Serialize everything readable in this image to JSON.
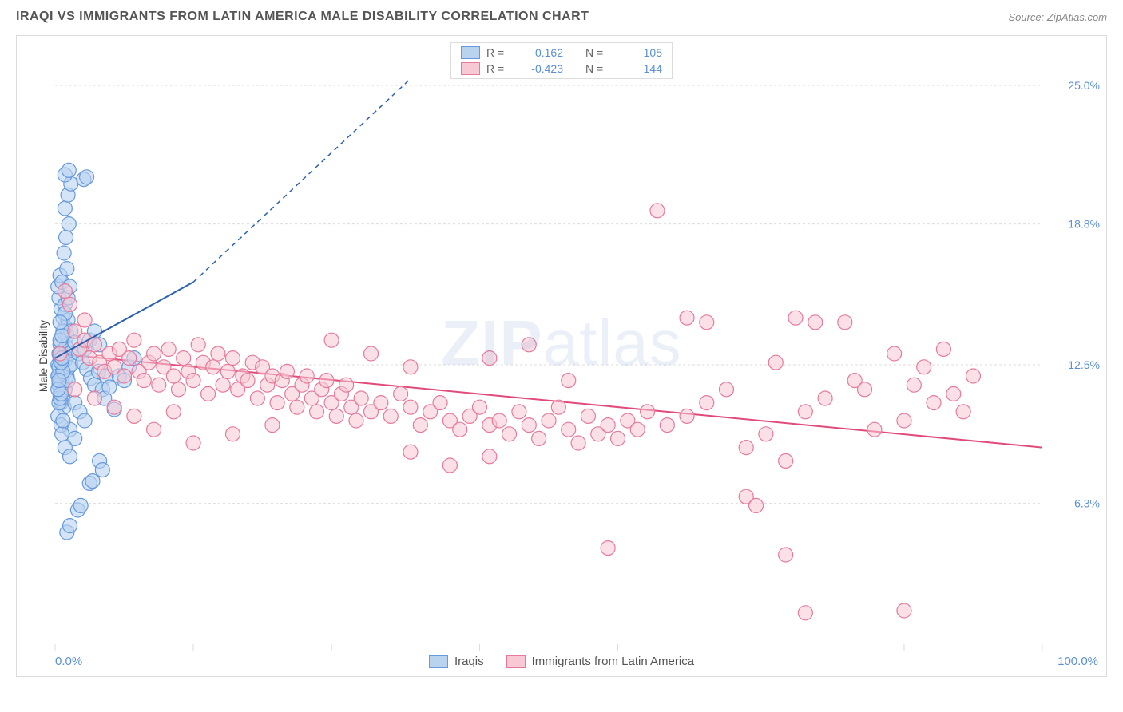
{
  "header": {
    "title": "IRAQI VS IMMIGRANTS FROM LATIN AMERICA MALE DISABILITY CORRELATION CHART",
    "source": "Source: ZipAtlas.com"
  },
  "ylabel": "Male Disability",
  "watermark": {
    "bold": "ZIP",
    "light": "atlas"
  },
  "chart": {
    "type": "scatter",
    "xlim": [
      0,
      100
    ],
    "ylim": [
      0,
      27
    ],
    "x_ticks": [
      0,
      14,
      28,
      43,
      57,
      71,
      86,
      100
    ],
    "y_gridlines": [
      6.3,
      12.5,
      18.8,
      25.0
    ],
    "y_grid_labels": [
      "6.3%",
      "12.5%",
      "18.8%",
      "25.0%"
    ],
    "x_axis_min_label": "0.0%",
    "x_axis_max_label": "100.0%",
    "plot_left_pad": 48,
    "plot_right_pad": 80,
    "background_color": "#ffffff",
    "grid_color": "#dcdcdc",
    "marker_radius": 9,
    "marker_stroke_width": 1.2,
    "series": [
      {
        "key": "iraqis",
        "label": "Iraqis",
        "fill": "#b9d2f0",
        "stroke": "#6699dd",
        "fill_opacity": 0.6,
        "r_value": "0.162",
        "n_value": "105",
        "trend": {
          "x1": 0,
          "y1": 12.8,
          "x2": 14,
          "y2": 16.2,
          "dash_x2": 36,
          "dash_y2": 25.3,
          "color": "#2b5fb0",
          "width": 2
        },
        "points": [
          [
            0.3,
            12.5
          ],
          [
            0.4,
            11.8
          ],
          [
            0.5,
            12.2
          ],
          [
            0.6,
            13.1
          ],
          [
            0.5,
            12.8
          ],
          [
            0.4,
            12.0
          ],
          [
            0.6,
            11.5
          ],
          [
            0.7,
            12.6
          ],
          [
            0.8,
            13.0
          ],
          [
            0.5,
            13.4
          ],
          [
            0.4,
            12.4
          ],
          [
            0.6,
            12.9
          ],
          [
            0.7,
            11.9
          ],
          [
            0.5,
            11.2
          ],
          [
            0.4,
            11.6
          ],
          [
            0.6,
            10.8
          ],
          [
            0.8,
            11.0
          ],
          [
            0.9,
            12.1
          ],
          [
            1.0,
            12.7
          ],
          [
            1.1,
            13.3
          ],
          [
            1.2,
            12.0
          ],
          [
            1.0,
            11.4
          ],
          [
            0.9,
            10.6
          ],
          [
            1.3,
            11.8
          ],
          [
            1.4,
            12.4
          ],
          [
            1.5,
            13.0
          ],
          [
            1.6,
            12.5
          ],
          [
            1.2,
            13.8
          ],
          [
            1.0,
            14.2
          ],
          [
            0.8,
            14.6
          ],
          [
            0.6,
            15.0
          ],
          [
            0.4,
            15.5
          ],
          [
            0.3,
            16.0
          ],
          [
            0.5,
            16.5
          ],
          [
            0.7,
            16.2
          ],
          [
            1.0,
            15.2
          ],
          [
            1.3,
            14.5
          ],
          [
            1.6,
            14.0
          ],
          [
            2.0,
            13.5
          ],
          [
            2.4,
            13.0
          ],
          [
            2.8,
            12.6
          ],
          [
            3.2,
            12.3
          ],
          [
            3.6,
            11.9
          ],
          [
            4.0,
            11.6
          ],
          [
            4.4,
            12.2
          ],
          [
            4.8,
            11.4
          ],
          [
            5.2,
            12.0
          ],
          [
            2.0,
            10.8
          ],
          [
            2.5,
            10.4
          ],
          [
            3.0,
            10.0
          ],
          [
            1.5,
            9.6
          ],
          [
            2.0,
            9.2
          ],
          [
            1.0,
            8.8
          ],
          [
            1.5,
            8.4
          ],
          [
            0.8,
            14.0
          ],
          [
            1.0,
            14.8
          ],
          [
            1.3,
            15.5
          ],
          [
            1.5,
            16.0
          ],
          [
            1.2,
            16.8
          ],
          [
            0.9,
            17.5
          ],
          [
            1.1,
            18.2
          ],
          [
            1.4,
            18.8
          ],
          [
            1.0,
            19.5
          ],
          [
            1.3,
            20.1
          ],
          [
            1.6,
            20.6
          ],
          [
            1.0,
            21.0
          ],
          [
            1.4,
            21.2
          ],
          [
            2.9,
            20.8
          ],
          [
            3.2,
            20.9
          ],
          [
            1.2,
            5.0
          ],
          [
            1.5,
            5.3
          ],
          [
            2.3,
            6.0
          ],
          [
            2.6,
            6.2
          ],
          [
            3.5,
            7.2
          ],
          [
            3.8,
            7.3
          ],
          [
            4.5,
            8.2
          ],
          [
            4.8,
            7.8
          ],
          [
            5.0,
            11.0
          ],
          [
            5.5,
            11.5
          ],
          [
            6.0,
            10.5
          ],
          [
            6.5,
            12.0
          ],
          [
            7.0,
            11.8
          ],
          [
            7.5,
            12.4
          ],
          [
            8.0,
            12.8
          ],
          [
            3.0,
            13.2
          ],
          [
            3.5,
            13.6
          ],
          [
            4.0,
            14.0
          ],
          [
            4.5,
            13.4
          ],
          [
            0.3,
            10.2
          ],
          [
            0.4,
            10.8
          ],
          [
            0.5,
            11.0
          ],
          [
            0.6,
            9.8
          ],
          [
            0.7,
            9.4
          ],
          [
            0.8,
            10.0
          ],
          [
            0.3,
            12.0
          ],
          [
            0.4,
            13.0
          ],
          [
            0.5,
            13.6
          ],
          [
            0.6,
            11.2
          ],
          [
            0.7,
            13.8
          ],
          [
            0.8,
            12.2
          ],
          [
            0.3,
            11.4
          ],
          [
            0.4,
            11.8
          ],
          [
            0.5,
            14.4
          ],
          [
            0.6,
            12.6
          ],
          [
            0.7,
            12.8
          ]
        ]
      },
      {
        "key": "latin",
        "label": "Immigrants from Latin America",
        "fill": "#f8c8d4",
        "stroke": "#e77a9a",
        "fill_opacity": 0.55,
        "r_value": "-0.423",
        "n_value": "144",
        "trend": {
          "x1": 0,
          "y1": 13.0,
          "x2": 100,
          "y2": 8.8,
          "color": "#e14b7a",
          "width": 2
        },
        "points": [
          [
            0.5,
            13.0
          ],
          [
            1.0,
            15.8
          ],
          [
            1.5,
            15.2
          ],
          [
            2.0,
            14.0
          ],
          [
            2.5,
            13.2
          ],
          [
            3.0,
            13.6
          ],
          [
            3.5,
            12.8
          ],
          [
            4.0,
            13.4
          ],
          [
            4.5,
            12.6
          ],
          [
            5.0,
            12.2
          ],
          [
            5.5,
            13.0
          ],
          [
            6.0,
            12.4
          ],
          [
            6.5,
            13.2
          ],
          [
            7.0,
            12.0
          ],
          [
            7.5,
            12.8
          ],
          [
            8.0,
            13.6
          ],
          [
            8.5,
            12.2
          ],
          [
            9.0,
            11.8
          ],
          [
            9.5,
            12.6
          ],
          [
            10.0,
            13.0
          ],
          [
            10.5,
            11.6
          ],
          [
            11.0,
            12.4
          ],
          [
            11.5,
            13.2
          ],
          [
            12.0,
            12.0
          ],
          [
            12.5,
            11.4
          ],
          [
            13.0,
            12.8
          ],
          [
            13.5,
            12.2
          ],
          [
            14.0,
            11.8
          ],
          [
            14.5,
            13.4
          ],
          [
            15.0,
            12.6
          ],
          [
            15.5,
            11.2
          ],
          [
            16.0,
            12.4
          ],
          [
            16.5,
            13.0
          ],
          [
            17.0,
            11.6
          ],
          [
            17.5,
            12.2
          ],
          [
            18.0,
            12.8
          ],
          [
            18.5,
            11.4
          ],
          [
            19.0,
            12.0
          ],
          [
            19.5,
            11.8
          ],
          [
            20.0,
            12.6
          ],
          [
            20.5,
            11.0
          ],
          [
            21.0,
            12.4
          ],
          [
            21.5,
            11.6
          ],
          [
            22.0,
            12.0
          ],
          [
            22.5,
            10.8
          ],
          [
            23.0,
            11.8
          ],
          [
            23.5,
            12.2
          ],
          [
            24.0,
            11.2
          ],
          [
            24.5,
            10.6
          ],
          [
            25.0,
            11.6
          ],
          [
            25.5,
            12.0
          ],
          [
            26.0,
            11.0
          ],
          [
            26.5,
            10.4
          ],
          [
            27.0,
            11.4
          ],
          [
            27.5,
            11.8
          ],
          [
            28.0,
            10.8
          ],
          [
            28.5,
            10.2
          ],
          [
            29.0,
            11.2
          ],
          [
            29.5,
            11.6
          ],
          [
            30.0,
            10.6
          ],
          [
            30.5,
            10.0
          ],
          [
            31.0,
            11.0
          ],
          [
            32.0,
            10.4
          ],
          [
            33.0,
            10.8
          ],
          [
            34.0,
            10.2
          ],
          [
            35.0,
            11.2
          ],
          [
            36.0,
            10.6
          ],
          [
            37.0,
            9.8
          ],
          [
            38.0,
            10.4
          ],
          [
            39.0,
            10.8
          ],
          [
            40.0,
            10.0
          ],
          [
            41.0,
            9.6
          ],
          [
            42.0,
            10.2
          ],
          [
            43.0,
            10.6
          ],
          [
            44.0,
            9.8
          ],
          [
            45.0,
            10.0
          ],
          [
            46.0,
            9.4
          ],
          [
            47.0,
            10.4
          ],
          [
            48.0,
            9.8
          ],
          [
            49.0,
            9.2
          ],
          [
            50.0,
            10.0
          ],
          [
            51.0,
            10.6
          ],
          [
            52.0,
            9.6
          ],
          [
            53.0,
            9.0
          ],
          [
            54.0,
            10.2
          ],
          [
            55.0,
            9.4
          ],
          [
            56.0,
            9.8
          ],
          [
            57.0,
            9.2
          ],
          [
            58.0,
            10.0
          ],
          [
            59.0,
            9.6
          ],
          [
            56.0,
            4.3
          ],
          [
            60.0,
            10.4
          ],
          [
            62.0,
            9.8
          ],
          [
            64.0,
            10.2
          ],
          [
            66.0,
            10.8
          ],
          [
            68.0,
            11.4
          ],
          [
            70.0,
            8.8
          ],
          [
            72.0,
            9.4
          ],
          [
            74.0,
            8.2
          ],
          [
            61.0,
            19.4
          ],
          [
            64.0,
            14.6
          ],
          [
            66.0,
            14.4
          ],
          [
            70.0,
            6.6
          ],
          [
            71.0,
            6.2
          ],
          [
            73.0,
            12.6
          ],
          [
            75.0,
            14.6
          ],
          [
            76.0,
            10.4
          ],
          [
            77.0,
            14.4
          ],
          [
            78.0,
            11.0
          ],
          [
            80.0,
            14.4
          ],
          [
            81.0,
            11.8
          ],
          [
            82.0,
            11.4
          ],
          [
            83.0,
            9.6
          ],
          [
            85.0,
            13.0
          ],
          [
            86.0,
            10.0
          ],
          [
            87.0,
            11.6
          ],
          [
            88.0,
            12.4
          ],
          [
            89.0,
            10.8
          ],
          [
            90.0,
            13.2
          ],
          [
            76.0,
            1.4
          ],
          [
            91.0,
            11.2
          ],
          [
            92.0,
            10.4
          ],
          [
            93.0,
            12.0
          ],
          [
            86.0,
            1.5
          ],
          [
            74.0,
            4.0
          ],
          [
            44.0,
            12.8
          ],
          [
            48.0,
            13.4
          ],
          [
            52.0,
            11.8
          ],
          [
            36.0,
            8.6
          ],
          [
            40.0,
            8.0
          ],
          [
            44.0,
            8.4
          ],
          [
            28.0,
            13.6
          ],
          [
            32.0,
            13.0
          ],
          [
            36.0,
            12.4
          ],
          [
            14.0,
            9.0
          ],
          [
            18.0,
            9.4
          ],
          [
            22.0,
            9.8
          ],
          [
            8.0,
            10.2
          ],
          [
            10.0,
            9.6
          ],
          [
            12.0,
            10.4
          ],
          [
            4.0,
            11.0
          ],
          [
            6.0,
            10.6
          ],
          [
            2.0,
            11.4
          ],
          [
            3.0,
            14.5
          ]
        ]
      }
    ]
  },
  "legend_top_labels": {
    "R": "R =",
    "N": "N ="
  },
  "legend_bottom": [
    {
      "label": "Iraqis",
      "fill": "#b9d2f0",
      "stroke": "#6699dd"
    },
    {
      "label": "Immigrants from Latin America",
      "fill": "#f8c8d4",
      "stroke": "#e77a9a"
    }
  ]
}
